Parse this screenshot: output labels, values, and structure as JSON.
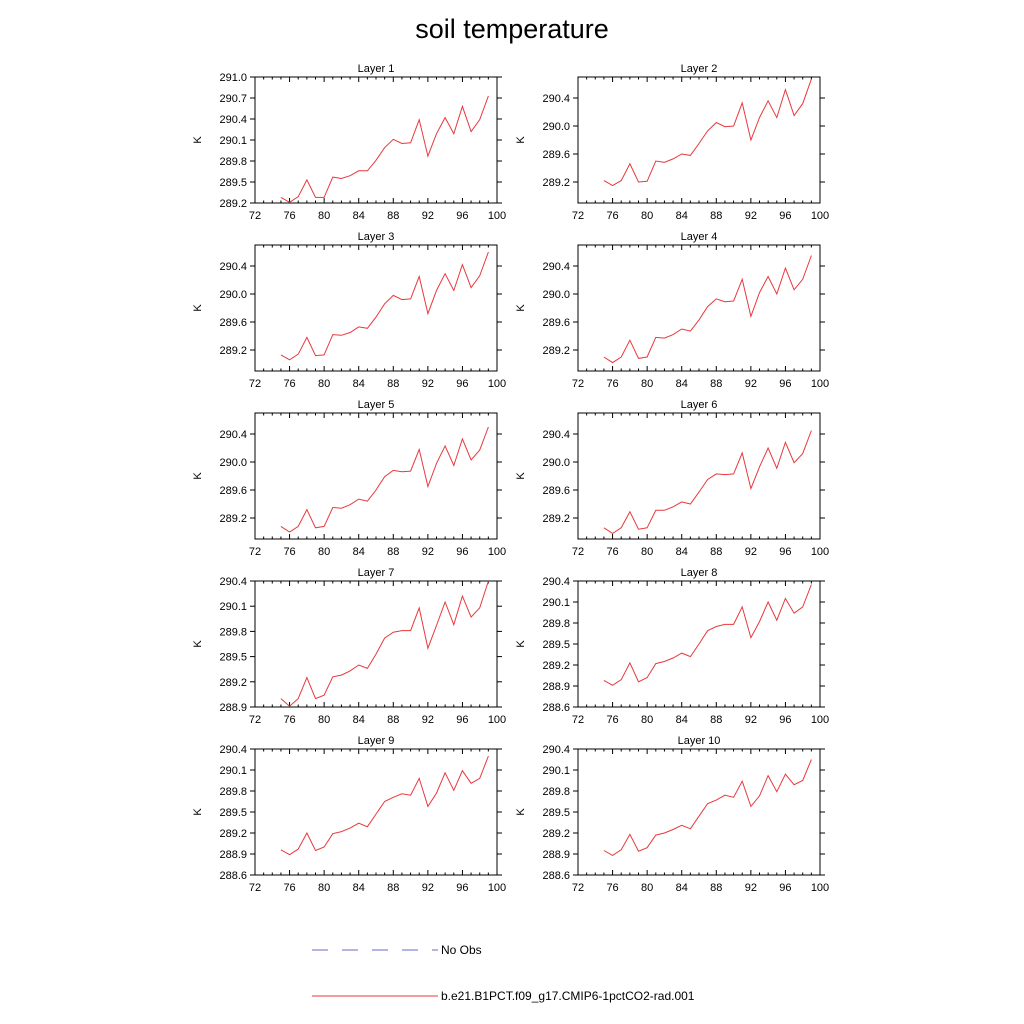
{
  "title": "soil temperature",
  "legend": {
    "items": [
      {
        "label": "No Obs",
        "color": "#6a6ac8",
        "dash": true
      },
      {
        "label": "b.e21.B1PCT.f09_g17.CMIP6-1pctCO2-rad.001",
        "color": "#e8383d",
        "dash": false
      }
    ]
  },
  "chart_data": [
    {
      "type": "line",
      "title": "Layer 1",
      "ylabel": "K",
      "xlim": [
        72,
        100
      ],
      "xticks": [
        72,
        76,
        80,
        84,
        88,
        92,
        96,
        100
      ],
      "xticklabels": [
        "72",
        "76",
        "80",
        "84",
        "88",
        "92",
        "96",
        "100"
      ],
      "ylim": [
        289.2,
        291.0
      ],
      "yticks": [
        289.2,
        289.5,
        289.8,
        290.1,
        290.4,
        290.7,
        291.0
      ],
      "yticklabels": [
        "289.2",
        "289.5",
        "289.8",
        "290.1",
        "290.4",
        "290.7",
        "291.0"
      ],
      "series": [
        {
          "color": "#e8383d",
          "x": [
            75,
            76,
            77,
            78,
            79,
            80,
            81,
            82,
            83,
            84,
            85,
            86,
            87,
            88,
            89,
            90,
            91,
            92,
            93,
            94,
            95,
            96,
            97,
            98,
            99
          ],
          "y": [
            289.28,
            289.21,
            289.29,
            289.53,
            289.28,
            289.28,
            289.57,
            289.55,
            289.59,
            289.66,
            289.66,
            289.81,
            289.99,
            290.11,
            290.05,
            290.06,
            290.39,
            289.87,
            290.19,
            290.42,
            290.19,
            290.58,
            290.22,
            290.39,
            290.73
          ]
        }
      ]
    },
    {
      "type": "line",
      "title": "Layer 2",
      "ylabel": "K",
      "xlim": [
        72,
        100
      ],
      "xticks": [
        72,
        76,
        80,
        84,
        88,
        92,
        96,
        100
      ],
      "xticklabels": [
        "72",
        "76",
        "80",
        "84",
        "88",
        "92",
        "96",
        "100"
      ],
      "ylim": [
        288.9,
        290.7
      ],
      "yticks": [
        289.2,
        289.6,
        290.0,
        290.4
      ],
      "yticklabels": [
        "289.2",
        "289.6",
        "290.0",
        "290.4"
      ],
      "series": [
        {
          "color": "#e8383d",
          "x": [
            75,
            76,
            77,
            78,
            79,
            80,
            81,
            82,
            83,
            84,
            85,
            86,
            87,
            88,
            89,
            90,
            91,
            92,
            93,
            94,
            95,
            96,
            97,
            98,
            99
          ],
          "y": [
            289.22,
            289.15,
            289.22,
            289.46,
            289.2,
            289.21,
            289.5,
            289.48,
            289.53,
            289.6,
            289.58,
            289.75,
            289.93,
            290.05,
            289.99,
            290.0,
            290.33,
            289.8,
            290.12,
            290.36,
            290.12,
            290.52,
            290.15,
            290.32,
            290.67
          ]
        }
      ]
    },
    {
      "type": "line",
      "title": "Layer 3",
      "ylabel": "K",
      "xlim": [
        72,
        100
      ],
      "xticks": [
        72,
        76,
        80,
        84,
        88,
        92,
        96,
        100
      ],
      "xticklabels": [
        "72",
        "76",
        "80",
        "84",
        "88",
        "92",
        "96",
        "100"
      ],
      "ylim": [
        288.9,
        290.7
      ],
      "yticks": [
        289.2,
        289.6,
        290.0,
        290.4
      ],
      "yticklabels": [
        "289.2",
        "289.6",
        "290.0",
        "290.4"
      ],
      "series": [
        {
          "color": "#e8383d",
          "x": [
            75,
            76,
            77,
            78,
            79,
            80,
            81,
            82,
            83,
            84,
            85,
            86,
            87,
            88,
            89,
            90,
            91,
            92,
            93,
            94,
            95,
            96,
            97,
            98,
            99
          ],
          "y": [
            289.13,
            289.06,
            289.14,
            289.38,
            289.12,
            289.13,
            289.42,
            289.41,
            289.45,
            289.53,
            289.51,
            289.67,
            289.86,
            289.98,
            289.92,
            289.93,
            290.25,
            289.72,
            290.05,
            290.29,
            290.05,
            290.42,
            290.09,
            290.26,
            290.6
          ]
        }
      ]
    },
    {
      "type": "line",
      "title": "Layer 4",
      "ylabel": "K",
      "xlim": [
        72,
        100
      ],
      "xticks": [
        72,
        76,
        80,
        84,
        88,
        92,
        96,
        100
      ],
      "xticklabels": [
        "72",
        "76",
        "80",
        "84",
        "88",
        "92",
        "96",
        "100"
      ],
      "ylim": [
        288.9,
        290.7
      ],
      "yticks": [
        289.2,
        289.6,
        290.0,
        290.4
      ],
      "yticklabels": [
        "289.2",
        "289.6",
        "290.0",
        "290.4"
      ],
      "series": [
        {
          "color": "#e8383d",
          "x": [
            75,
            76,
            77,
            78,
            79,
            80,
            81,
            82,
            83,
            84,
            85,
            86,
            87,
            88,
            89,
            90,
            91,
            92,
            93,
            94,
            95,
            96,
            97,
            98,
            99
          ],
          "y": [
            289.1,
            289.02,
            289.1,
            289.34,
            289.08,
            289.1,
            289.38,
            289.37,
            289.42,
            289.5,
            289.47,
            289.63,
            289.82,
            289.93,
            289.89,
            289.9,
            290.21,
            289.68,
            290.02,
            290.25,
            290.0,
            290.37,
            290.06,
            290.21,
            290.55
          ]
        }
      ]
    },
    {
      "type": "line",
      "title": "Layer 5",
      "ylabel": "K",
      "xlim": [
        72,
        100
      ],
      "xticks": [
        72,
        76,
        80,
        84,
        88,
        92,
        96,
        100
      ],
      "xticklabels": [
        "72",
        "76",
        "80",
        "84",
        "88",
        "92",
        "96",
        "100"
      ],
      "ylim": [
        288.9,
        290.7
      ],
      "yticks": [
        289.2,
        289.6,
        290.0,
        290.4
      ],
      "yticklabels": [
        "289.2",
        "289.6",
        "290.0",
        "290.4"
      ],
      "series": [
        {
          "color": "#e8383d",
          "x": [
            75,
            76,
            77,
            78,
            79,
            80,
            81,
            82,
            83,
            84,
            85,
            86,
            87,
            88,
            89,
            90,
            91,
            92,
            93,
            94,
            95,
            96,
            97,
            98,
            99
          ],
          "y": [
            289.08,
            289.0,
            289.08,
            289.32,
            289.06,
            289.08,
            289.35,
            289.34,
            289.39,
            289.47,
            289.44,
            289.6,
            289.79,
            289.88,
            289.86,
            289.87,
            290.18,
            289.65,
            289.98,
            290.23,
            289.95,
            290.33,
            290.03,
            290.17,
            290.5
          ]
        }
      ]
    },
    {
      "type": "line",
      "title": "Layer 6",
      "ylabel": "K",
      "xlim": [
        72,
        100
      ],
      "xticks": [
        72,
        76,
        80,
        84,
        88,
        92,
        96,
        100
      ],
      "xticklabels": [
        "72",
        "76",
        "80",
        "84",
        "88",
        "92",
        "96",
        "100"
      ],
      "ylim": [
        288.9,
        290.7
      ],
      "yticks": [
        289.2,
        289.6,
        290.0,
        290.4
      ],
      "yticklabels": [
        "289.2",
        "289.6",
        "290.0",
        "290.4"
      ],
      "series": [
        {
          "color": "#e8383d",
          "x": [
            75,
            76,
            77,
            78,
            79,
            80,
            81,
            82,
            83,
            84,
            85,
            86,
            87,
            88,
            89,
            90,
            91,
            92,
            93,
            94,
            95,
            96,
            97,
            98,
            99
          ],
          "y": [
            289.06,
            288.98,
            289.06,
            289.29,
            289.04,
            289.06,
            289.31,
            289.31,
            289.36,
            289.43,
            289.4,
            289.57,
            289.75,
            289.83,
            289.82,
            289.83,
            290.13,
            289.62,
            289.93,
            290.2,
            289.91,
            290.28,
            289.99,
            290.12,
            290.45
          ]
        }
      ]
    },
    {
      "type": "line",
      "title": "Layer 7",
      "ylabel": "K",
      "xlim": [
        72,
        100
      ],
      "xticks": [
        72,
        76,
        80,
        84,
        88,
        92,
        96,
        100
      ],
      "xticklabels": [
        "72",
        "76",
        "80",
        "84",
        "88",
        "92",
        "96",
        "100"
      ],
      "ylim": [
        288.9,
        290.4
      ],
      "yticks": [
        288.9,
        289.2,
        289.5,
        289.8,
        290.1,
        290.4
      ],
      "yticklabels": [
        "288.9",
        "289.2",
        "289.5",
        "289.8",
        "290.1",
        "290.4"
      ],
      "series": [
        {
          "color": "#e8383d",
          "x": [
            75,
            76,
            77,
            78,
            79,
            80,
            81,
            82,
            83,
            84,
            85,
            86,
            87,
            88,
            89,
            90,
            91,
            92,
            93,
            94,
            95,
            96,
            97,
            98,
            99
          ],
          "y": [
            289.0,
            288.91,
            289.0,
            289.25,
            289.0,
            289.04,
            289.26,
            289.28,
            289.33,
            289.4,
            289.36,
            289.53,
            289.72,
            289.79,
            289.81,
            289.81,
            290.08,
            289.6,
            289.87,
            290.15,
            289.88,
            290.22,
            289.97,
            290.08,
            290.4
          ]
        }
      ]
    },
    {
      "type": "line",
      "title": "Layer 8",
      "ylabel": "K",
      "xlim": [
        72,
        100
      ],
      "xticks": [
        72,
        76,
        80,
        84,
        88,
        92,
        96,
        100
      ],
      "xticklabels": [
        "72",
        "76",
        "80",
        "84",
        "88",
        "92",
        "96",
        "100"
      ],
      "ylim": [
        288.6,
        290.4
      ],
      "yticks": [
        288.6,
        288.9,
        289.2,
        289.5,
        289.8,
        290.1,
        290.4
      ],
      "yticklabels": [
        "288.6",
        "288.9",
        "289.2",
        "289.5",
        "289.8",
        "290.1",
        "290.4"
      ],
      "series": [
        {
          "color": "#e8383d",
          "x": [
            75,
            76,
            77,
            78,
            79,
            80,
            81,
            82,
            83,
            84,
            85,
            86,
            87,
            88,
            89,
            90,
            91,
            92,
            93,
            94,
            95,
            96,
            97,
            98,
            99
          ],
          "y": [
            288.98,
            288.91,
            288.99,
            289.23,
            288.96,
            289.02,
            289.22,
            289.25,
            289.3,
            289.37,
            289.32,
            289.5,
            289.69,
            289.75,
            289.78,
            289.78,
            290.03,
            289.59,
            289.82,
            290.1,
            289.84,
            290.15,
            289.94,
            290.03,
            290.35
          ]
        }
      ]
    },
    {
      "type": "line",
      "title": "Layer 9",
      "ylabel": "K",
      "xlim": [
        72,
        100
      ],
      "xticks": [
        72,
        76,
        80,
        84,
        88,
        92,
        96,
        100
      ],
      "xticklabels": [
        "72",
        "76",
        "80",
        "84",
        "88",
        "92",
        "96",
        "100"
      ],
      "ylim": [
        288.6,
        290.4
      ],
      "yticks": [
        288.6,
        288.9,
        289.2,
        289.5,
        289.8,
        290.1,
        290.4
      ],
      "yticklabels": [
        "288.6",
        "288.9",
        "289.2",
        "289.5",
        "289.8",
        "290.1",
        "290.4"
      ],
      "series": [
        {
          "color": "#e8383d",
          "x": [
            75,
            76,
            77,
            78,
            79,
            80,
            81,
            82,
            83,
            84,
            85,
            86,
            87,
            88,
            89,
            90,
            91,
            92,
            93,
            94,
            95,
            96,
            97,
            98,
            99
          ],
          "y": [
            288.96,
            288.89,
            288.97,
            289.2,
            288.95,
            289.0,
            289.19,
            289.22,
            289.27,
            289.34,
            289.29,
            289.47,
            289.65,
            289.71,
            289.76,
            289.74,
            289.98,
            289.58,
            289.77,
            290.06,
            289.81,
            290.09,
            289.91,
            289.98,
            290.3
          ]
        }
      ]
    },
    {
      "type": "line",
      "title": "Layer 10",
      "ylabel": "K",
      "xlim": [
        72,
        100
      ],
      "xticks": [
        72,
        76,
        80,
        84,
        88,
        92,
        96,
        100
      ],
      "xticklabels": [
        "72",
        "76",
        "80",
        "84",
        "88",
        "92",
        "96",
        "100"
      ],
      "ylim": [
        288.6,
        290.4
      ],
      "yticks": [
        288.6,
        288.9,
        289.2,
        289.5,
        289.8,
        290.1,
        290.4
      ],
      "yticklabels": [
        "288.6",
        "288.9",
        "289.2",
        "289.5",
        "289.8",
        "290.1",
        "290.4"
      ],
      "series": [
        {
          "color": "#e8383d",
          "x": [
            75,
            76,
            77,
            78,
            79,
            80,
            81,
            82,
            83,
            84,
            85,
            86,
            87,
            88,
            89,
            90,
            91,
            92,
            93,
            94,
            95,
            96,
            97,
            98,
            99
          ],
          "y": [
            288.95,
            288.88,
            288.96,
            289.18,
            288.94,
            288.99,
            289.17,
            289.2,
            289.25,
            289.31,
            289.26,
            289.44,
            289.62,
            289.67,
            289.74,
            289.71,
            289.94,
            289.58,
            289.73,
            290.02,
            289.79,
            290.04,
            289.89,
            289.95,
            290.25
          ]
        }
      ]
    }
  ]
}
